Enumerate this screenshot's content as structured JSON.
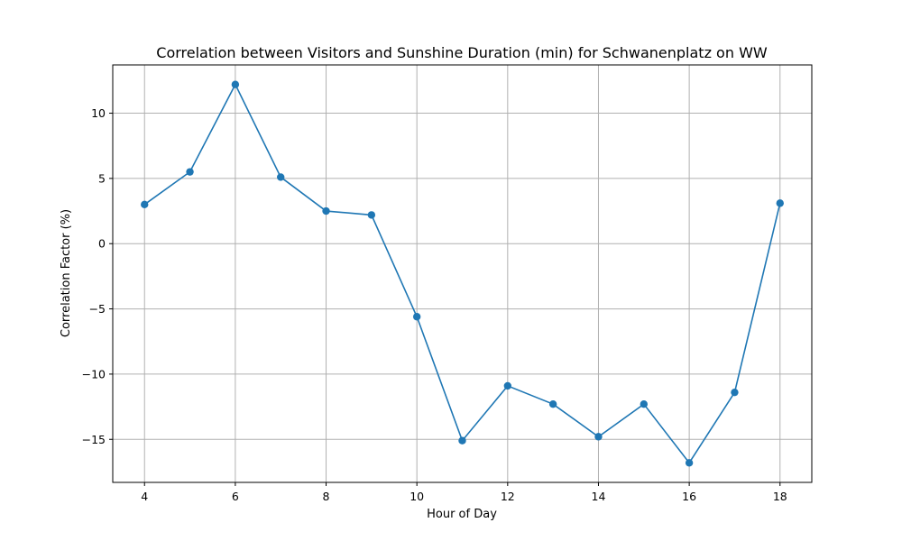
{
  "chart_data": {
    "type": "line",
    "title": "Correlation between Visitors and Sunshine Duration (min) for Schwanenplatz on WW",
    "xlabel": "Hour of Day",
    "ylabel": "Correlation Factor (%)",
    "x": [
      4,
      5,
      6,
      7,
      8,
      9,
      10,
      11,
      12,
      13,
      14,
      15,
      16,
      17,
      18
    ],
    "series": [
      {
        "values": [
          3.0,
          5.5,
          12.2,
          5.1,
          2.5,
          2.2,
          -5.6,
          -15.1,
          -10.9,
          -12.3,
          -14.8,
          -12.3,
          -16.8,
          -11.4,
          3.1
        ],
        "color": "#1f77b4",
        "marker": "circle"
      }
    ],
    "xlim": [
      3.3,
      18.7
    ],
    "ylim": [
      -18.3,
      13.7
    ],
    "xticks": [
      4,
      6,
      8,
      10,
      12,
      14,
      16,
      18
    ],
    "yticks": [
      -15,
      -10,
      -5,
      0,
      5,
      10
    ],
    "grid": true,
    "legend": "none"
  }
}
